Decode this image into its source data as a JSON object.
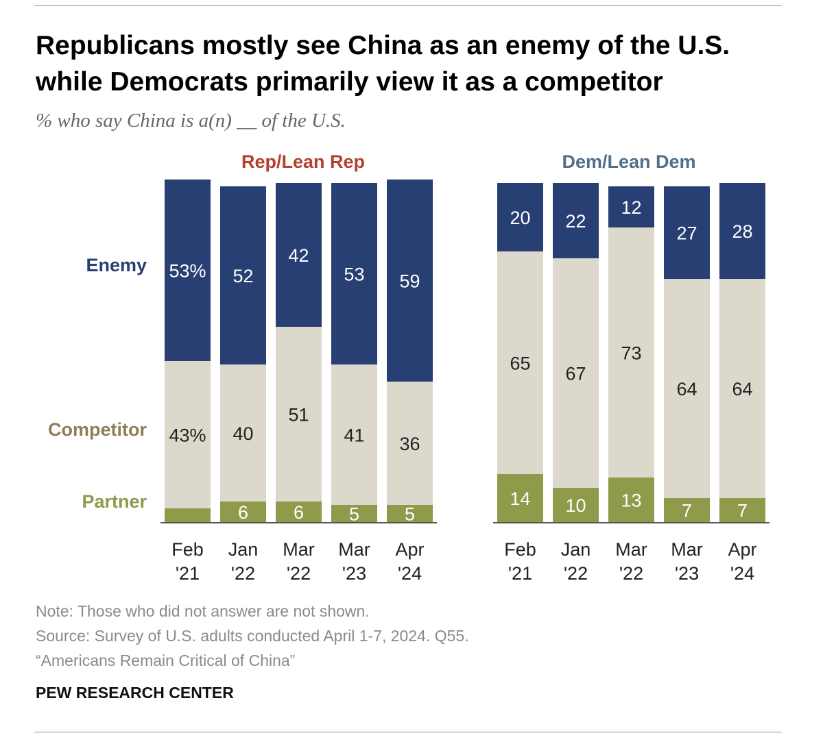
{
  "title_line1": "Republicans mostly see China as an enemy of the U.S.",
  "title_line2": "while Democrats primarily view it as a competitor",
  "subtitle": "% who say China is a(n) __ of the U.S.",
  "notes": {
    "note": "Note: Those who did not answer are not shown.",
    "source": "Source: Survey of U.S. adults conducted April 1-7, 2024. Q55.",
    "report": "“Americans Remain Critical of China”"
  },
  "brand": "PEW RESEARCH CENTER",
  "colors": {
    "enemy": "#273f72",
    "competitor": "#dcd8cb",
    "partner": "#8f9a4b",
    "rep": "#b5402f",
    "dem": "#526e88",
    "competitor_label": "#8c7f58"
  },
  "chart_data": {
    "type": "bar",
    "stacked": true,
    "categories": [
      "Feb '21",
      "Jan '22",
      "Mar '22",
      "Mar '23",
      "Apr '24"
    ],
    "row_labels": [
      "Enemy",
      "Competitor",
      "Partner"
    ],
    "groups": [
      {
        "name": "Rep/Lean Rep",
        "series": [
          {
            "name": "Partner",
            "values": [
              4,
              6,
              6,
              5,
              5
            ],
            "labels": [
              "",
              "6",
              "6",
              "5",
              "5"
            ]
          },
          {
            "name": "Competitor",
            "values": [
              43,
              40,
              51,
              41,
              36
            ],
            "labels": [
              "43%",
              "40",
              "51",
              "41",
              "36"
            ]
          },
          {
            "name": "Enemy",
            "values": [
              53,
              52,
              42,
              53,
              59
            ],
            "labels": [
              "53%",
              "52",
              "42",
              "53",
              "59"
            ]
          }
        ]
      },
      {
        "name": "Dem/Lean Dem",
        "series": [
          {
            "name": "Partner",
            "values": [
              14,
              10,
              13,
              7,
              7
            ],
            "labels": [
              "14",
              "10",
              "13",
              "7",
              "7"
            ]
          },
          {
            "name": "Competitor",
            "values": [
              65,
              67,
              73,
              64,
              64
            ],
            "labels": [
              "65",
              "67",
              "73",
              "64",
              "64"
            ]
          },
          {
            "name": "Enemy",
            "values": [
              20,
              22,
              12,
              27,
              28
            ],
            "labels": [
              "20",
              "22",
              "12",
              "27",
              "28"
            ]
          }
        ]
      }
    ]
  }
}
